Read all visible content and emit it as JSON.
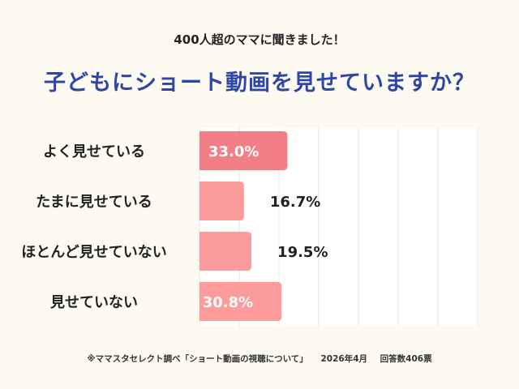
{
  "subtitle": "400人超のママに聞きました！",
  "title": "子どもにショート動画を見せていますか？",
  "chart_data": {
    "type": "bar",
    "orientation": "horizontal",
    "categories": [
      "よく見せている",
      "たまに見せている",
      "ほとんど見せていない",
      "見せていない"
    ],
    "values": [
      33.0,
      16.7,
      19.5,
      30.8
    ],
    "data_labels": [
      "33.0%",
      "16.7%",
      "19.5%",
      "30.8%"
    ],
    "xlim": [
      0,
      100
    ],
    "grid": true,
    "highlight_color": "#f27f85",
    "bar_color": "#fc9b9c",
    "label_inside_color": "#ffffff",
    "label_outside_color": "#222222"
  },
  "footnote": {
    "source": "※ママスタセレクト調べ「ショート動画の視聴について」",
    "date": "2026年4月",
    "count": "回答数406票"
  }
}
